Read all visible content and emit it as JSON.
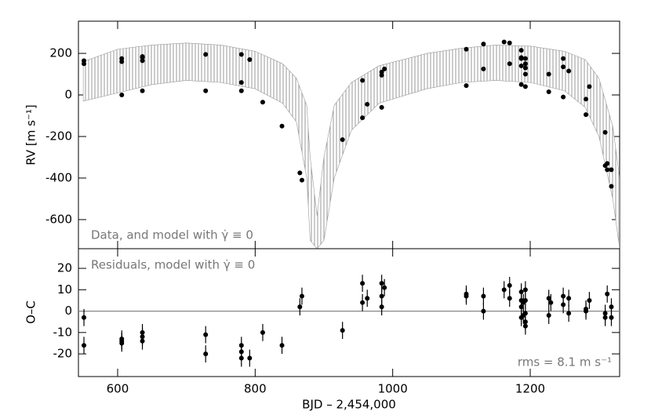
{
  "chart_data": [
    {
      "type": "scatter",
      "ylabel": "RV [m s⁻¹]",
      "annotation": "Data, and model with γ̇ ≡ 0",
      "xlim": [
        543,
        1330
      ],
      "ylim": [
        -740,
        355
      ],
      "yticks": [
        -600,
        -400,
        -200,
        0,
        200
      ],
      "color": "#000000",
      "model_color": "#999999",
      "model_x": [
        550,
        600,
        650,
        700,
        750,
        800,
        840,
        860,
        875,
        880,
        890,
        900,
        915,
        940,
        980,
        1050,
        1100,
        1150,
        1200,
        1250,
        1280,
        1300,
        1320,
        1330
      ],
      "model_upper": [
        160,
        220,
        240,
        250,
        240,
        210,
        150,
        80,
        -50,
        -300,
        -580,
        -300,
        -50,
        60,
        140,
        200,
        225,
        240,
        235,
        210,
        170,
        80,
        -150,
        -400
      ],
      "model_lower": [
        -30,
        10,
        50,
        70,
        60,
        30,
        -40,
        -130,
        -400,
        -700,
        -740,
        -700,
        -400,
        -170,
        -40,
        30,
        60,
        70,
        60,
        20,
        -60,
        -200,
        -500,
        -740
      ],
      "x": [
        551,
        551,
        606,
        606,
        606,
        636,
        636,
        636,
        636,
        728,
        728,
        780,
        780,
        780,
        792,
        811,
        839,
        865,
        868,
        927,
        956,
        956,
        963,
        984,
        984,
        984,
        988,
        1107,
        1107,
        1132,
        1132,
        1162,
        1170,
        1170,
        1187,
        1187,
        1187,
        1187,
        1187,
        1193,
        1193,
        1193,
        1193,
        1193,
        1227,
        1227,
        1248,
        1248,
        1248,
        1256,
        1281,
        1281,
        1286,
        1309,
        1309,
        1312,
        1312,
        1318,
        1318
      ],
      "values": [
        165,
        150,
        175,
        160,
        0,
        185,
        180,
        165,
        20,
        195,
        20,
        195,
        60,
        20,
        170,
        -35,
        -150,
        -375,
        -410,
        -215,
        70,
        -110,
        -45,
        110,
        95,
        -60,
        125,
        220,
        45,
        245,
        125,
        255,
        250,
        150,
        180,
        175,
        215,
        140,
        50,
        175,
        150,
        130,
        100,
        40,
        100,
        15,
        175,
        135,
        -10,
        115,
        -20,
        -95,
        40,
        -180,
        -340,
        -360,
        -330,
        -360,
        -440
      ]
    },
    {
      "type": "errorbar",
      "xlabel": "BJD – 2,454,000",
      "ylabel": "O–C",
      "annotation": "Residuals, model with γ̇ ≡ 0",
      "rms_label": "rms = 8.1 m s⁻¹",
      "xlim": [
        543,
        1330
      ],
      "xticks": [
        600,
        800,
        1000,
        1200
      ],
      "ylim": [
        -30.6,
        29.2
      ],
      "yticks": [
        -20,
        -10,
        0,
        10,
        20
      ],
      "reference_line": 0,
      "color": "#000000",
      "reference_color": "#888888",
      "x": [
        551,
        551,
        606,
        606,
        606,
        636,
        636,
        636,
        728,
        728,
        780,
        780,
        780,
        792,
        811,
        839,
        865,
        868,
        927,
        956,
        956,
        963,
        984,
        984,
        984,
        988,
        1107,
        1107,
        1132,
        1132,
        1162,
        1170,
        1170,
        1187,
        1187,
        1187,
        1187,
        1190,
        1190,
        1193,
        1193,
        1193,
        1193,
        1193,
        1227,
        1227,
        1230,
        1248,
        1248,
        1256,
        1256,
        1281,
        1281,
        1286,
        1309,
        1309,
        1312,
        1318,
        1318
      ],
      "values": [
        -3,
        -16,
        -13,
        -14,
        -15,
        -12,
        -14,
        -10,
        -11,
        -20,
        -16,
        -19,
        -22,
        -22,
        -10,
        -16,
        2,
        7,
        -9,
        13,
        4,
        6,
        13,
        7,
        2,
        11,
        8,
        7,
        7,
        0,
        10,
        12,
        6,
        5,
        2,
        -3,
        9,
        4,
        -2,
        -5,
        -7,
        5,
        10,
        -1,
        6,
        -2,
        4,
        7,
        3,
        6,
        -1,
        0,
        1,
        5,
        -1,
        -3,
        8,
        -3,
        2
      ],
      "errors": [
        4,
        4,
        4,
        4,
        4,
        4,
        4,
        4,
        4,
        4,
        4,
        4,
        4,
        4,
        4,
        4,
        4,
        4,
        4,
        4,
        4,
        4,
        4,
        4,
        4,
        4,
        4,
        4,
        4,
        4,
        4,
        4,
        4,
        4,
        4,
        4,
        4,
        4,
        4,
        4,
        4,
        4,
        4,
        4,
        4,
        4,
        4,
        4,
        4,
        4,
        4,
        4,
        4,
        4,
        4,
        4,
        4,
        4,
        4
      ]
    }
  ]
}
